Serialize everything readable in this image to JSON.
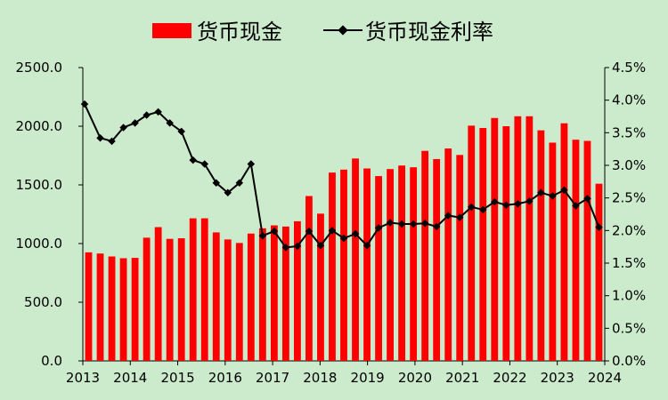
{
  "chart_data": {
    "type": "bar+line",
    "legend": {
      "position": "top",
      "items": [
        {
          "name": "货币现金",
          "kind": "bar",
          "color": "#FF0000"
        },
        {
          "name": "货币现金利率",
          "kind": "line-marker",
          "color": "#000000"
        }
      ]
    },
    "x_ticks": [
      "2013",
      "2014",
      "2015",
      "2016",
      "2017",
      "2018",
      "2019",
      "2020",
      "2021",
      "2022",
      "2023",
      "2024"
    ],
    "y_left": {
      "min": 0,
      "max": 2500,
      "step": 500,
      "tick_labels": [
        "0.0",
        "500.0",
        "1000.0",
        "1500.0",
        "2000.0",
        "2500.0"
      ]
    },
    "y_right": {
      "min": 0,
      "max": 4.5,
      "step": 0.5,
      "unit": "%",
      "tick_labels": [
        "0.0%",
        "0.5%",
        "1.0%",
        "1.5%",
        "2.0%",
        "2.5%",
        "3.0%",
        "3.5%",
        "4.0%",
        "4.5%"
      ]
    },
    "bars": {
      "name": "货币现金",
      "values": [
        925,
        915,
        890,
        875,
        878,
        1050,
        1140,
        1040,
        1045,
        1215,
        1215,
        1095,
        1035,
        1005,
        1085,
        1130,
        1155,
        1145,
        1190,
        1405,
        1255,
        1605,
        1630,
        1725,
        1640,
        1575,
        1635,
        1665,
        1650,
        1790,
        1720,
        1810,
        1755,
        2005,
        1985,
        2070,
        2000,
        2085,
        2085,
        1965,
        1860,
        2025,
        1885,
        1875,
        1510
      ]
    },
    "line": {
      "name": "货币现金利率",
      "values": [
        3.94,
        3.42,
        3.37,
        3.58,
        3.65,
        3.77,
        3.82,
        3.65,
        3.52,
        3.08,
        3.02,
        2.73,
        2.58,
        2.73,
        3.02,
        1.92,
        1.99,
        1.74,
        1.76,
        1.99,
        1.77,
        2.0,
        1.88,
        1.95,
        1.77,
        2.04,
        2.12,
        2.1,
        2.1,
        2.11,
        2.06,
        2.23,
        2.2,
        2.36,
        2.32,
        2.44,
        2.39,
        2.41,
        2.45,
        2.58,
        2.53,
        2.62,
        2.38,
        2.49,
        2.05
      ]
    }
  }
}
